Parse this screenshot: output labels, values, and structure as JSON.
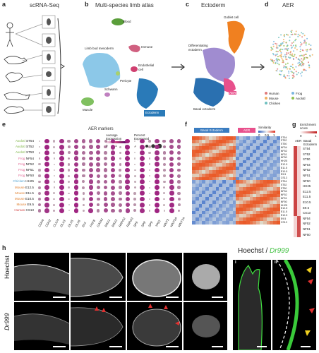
{
  "panels": {
    "a": {
      "letter": "a",
      "title": "scRNA-Seq"
    },
    "b": {
      "letter": "b",
      "title": "Multi-species limb atlas",
      "clusters": [
        "Blood",
        "Immune",
        "Limb bud mesoderm",
        "Endothelial cell",
        "Pericyte",
        "Schwann",
        "Muscle",
        "Ectoderm"
      ]
    },
    "c": {
      "letter": "c",
      "title": "Ectoderm",
      "clusters": [
        "Goblet cell",
        "Differentiating ectoderm",
        "AER",
        "Basal ectoderm"
      ]
    },
    "d": {
      "letter": "d",
      "title": "AER",
      "legend": [
        {
          "name": "Human",
          "color": "#e07a7a"
        },
        {
          "name": "Frog",
          "color": "#7ab7e0"
        },
        {
          "name": "Mouse",
          "color": "#f0b060"
        },
        {
          "name": "Axolotl",
          "color": "#90c050"
        },
        {
          "name": "Chicken",
          "color": "#70c0c0"
        }
      ]
    },
    "e": {
      "letter": "e",
      "title": "AER markers",
      "legend_avg": "Average Expression",
      "legend_pct": "Percent Expressed",
      "avg_ticks": [
        "0",
        "1",
        "2"
      ],
      "pct_ticks": [
        "0",
        "25",
        "50",
        "75",
        "100"
      ],
      "rows": [
        {
          "species": "Axolotl",
          "stage": "ST54",
          "color": "#7cb342"
        },
        {
          "species": "Axolotl",
          "stage": "ST52",
          "color": "#7cb342"
        },
        {
          "species": "Axolotl",
          "stage": "ST50",
          "color": "#7cb342"
        },
        {
          "species": "Frog",
          "stage": "NF54",
          "color": "#e06090"
        },
        {
          "species": "Frog",
          "stage": "NF52",
          "color": "#e06090"
        },
        {
          "species": "Frog",
          "stage": "NF51",
          "color": "#e06090"
        },
        {
          "species": "Frog",
          "stage": "NF50",
          "color": "#e06090"
        },
        {
          "species": "Chicken",
          "stage": "HH25",
          "color": "#4fa0d0"
        },
        {
          "species": "Mouse",
          "stage": "E12.5",
          "color": "#e08030"
        },
        {
          "species": "Mouse",
          "stage": "E11.5",
          "color": "#e08030"
        },
        {
          "species": "Mouse",
          "stage": "E10.5",
          "color": "#e08030"
        },
        {
          "species": "Mouse",
          "stage": "E9.5",
          "color": "#e08030"
        },
        {
          "species": "Human",
          "stage": "CS13",
          "color": "#d04040"
        }
      ],
      "genes": [
        "CDH4",
        "CDH2",
        "CLIC4",
        "DLX3",
        "DLX5",
        "DLX6",
        "En1",
        "FGF8",
        "GATA1",
        "MSX1",
        "MSX2",
        "RSPO2",
        "RSPO3",
        "SP6",
        "SP8",
        "SP9",
        "TP63",
        "WNT3",
        "WNT5A",
        "WNT7A"
      ]
    },
    "f": {
      "letter": "f",
      "bars": [
        "Basal Ectoderm",
        "AER"
      ],
      "legend_title": "Similarity",
      "legend_ticks": [
        "0",
        "0.5",
        "1"
      ],
      "labels": [
        "ST54",
        "ST52",
        "ST50",
        "NF54",
        "NF52",
        "NF51",
        "NF50",
        "HH25",
        "E12.5",
        "E11.5",
        "E10.5",
        "E9.5",
        "CS13",
        "ST54",
        "ST52",
        "ST50",
        "NF54",
        "NF52",
        "NF51",
        "NF50",
        "HH25",
        "E12.5",
        "E11.5",
        "E10.5",
        "E9.5",
        "CS13"
      ]
    },
    "g": {
      "letter": "g",
      "title": "Enrichment score",
      "ticks": [
        "0",
        "1"
      ],
      "col_labels": [
        "AER",
        "Basal Ectoderm"
      ],
      "rows": [
        "ST54",
        "ST52",
        "ST50",
        "NF54",
        "NF52",
        "NF51",
        "NF50",
        "HH25",
        "E12.5",
        "E11.5",
        "E10.5",
        "E9.5",
        "CS13",
        "NF54",
        "NF52",
        "NF51",
        "NF50"
      ]
    },
    "h": {
      "letter": "h",
      "row_labels": [
        "Hoechst",
        "Dr999"
      ]
    },
    "i": {
      "letter": "i",
      "title_part1": "Hoechst / ",
      "title_part2": "Dr999",
      "sub_i": "i",
      "sub_ii": "ii"
    }
  },
  "colors": {
    "limb_mesoderm": "#8cc8e8",
    "ectoderm": "#2a7ab8",
    "goblet": "#f08020",
    "diff_ecto": "#a08cd0",
    "aer": "#e8508c",
    "basal": "#2a70b0",
    "green_fluor": "#40e040",
    "red_arrow": "#e03030",
    "yellow_arrow": "#f0d020"
  }
}
